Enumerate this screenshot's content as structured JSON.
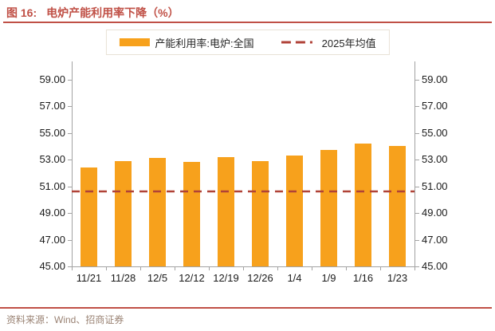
{
  "header": {
    "figure_label": "图 16:",
    "figure_title": "电炉产能利用率下降（%）"
  },
  "legend": {
    "bar_label": "产能利用率:电炉:全国",
    "line_label": "2025年均值"
  },
  "footer": {
    "source": "资料来源：Wind、招商证券"
  },
  "colors": {
    "accent_brick": "#C05046",
    "bar_orange": "#F7A11C",
    "dash_red": "#B04237",
    "axis_gray": "#A3A3A3",
    "tick_text": "#1A1A1A",
    "source_text": "#9A8374"
  },
  "chart_data": {
    "type": "bar",
    "title": "电炉产能利用率下降（%）",
    "categories": [
      "11/21",
      "11/28",
      "12/5",
      "12/12",
      "12/19",
      "12/26",
      "1/4",
      "1/9",
      "1/16",
      "1/23"
    ],
    "series": [
      {
        "name": "产能利用率:电炉:全国",
        "type": "bar",
        "color": "#F7A11C",
        "values": [
          52.4,
          52.9,
          53.1,
          52.8,
          53.2,
          52.9,
          53.3,
          53.7,
          54.2,
          54.0
        ]
      },
      {
        "name": "2025年均值",
        "type": "dashed-line",
        "color": "#B04237",
        "value": 50.6
      }
    ],
    "xlabel": "",
    "ylabel": "",
    "ylim": [
      45,
      59
    ],
    "yticks": [
      45,
      47,
      49,
      51,
      53,
      55,
      57,
      59
    ],
    "ytick_decimals": 2,
    "grid": false,
    "legend_position": "top",
    "dual_y_axis": true
  }
}
